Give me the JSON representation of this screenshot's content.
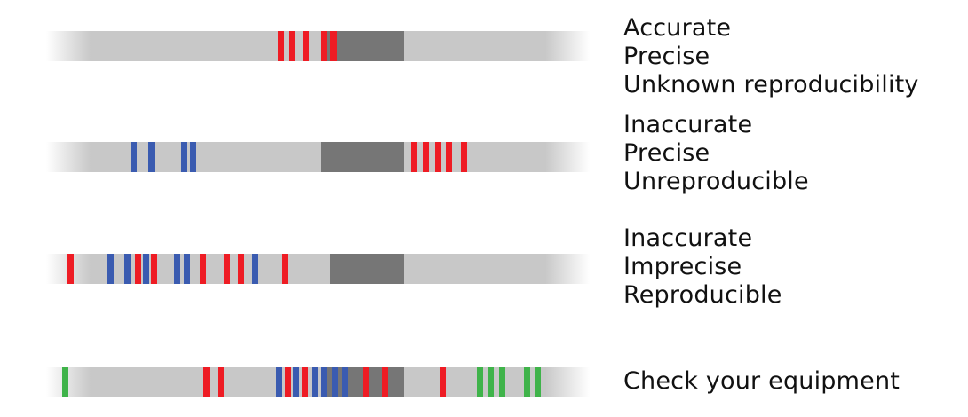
{
  "colors": {
    "strip": "#c8c8c8",
    "target_zone": "#767676",
    "red": "#ee1c24",
    "blue": "#3a5bb0",
    "green": "#3fb34a"
  },
  "rows": [
    {
      "labels": [
        "Accurate",
        "Precise",
        "Unknown reproducibility"
      ],
      "marks": [
        {
          "pos": 313,
          "color": "red"
        },
        {
          "pos": 325,
          "color": "red"
        },
        {
          "pos": 341,
          "color": "red"
        },
        {
          "pos": 361,
          "color": "red"
        },
        {
          "pos": 372,
          "color": "red"
        }
      ]
    },
    {
      "labels": [
        "Inaccurate",
        "Precise",
        "Unreproducible"
      ],
      "marks": [
        {
          "pos": 147,
          "color": "blue"
        },
        {
          "pos": 167,
          "color": "blue"
        },
        {
          "pos": 204,
          "color": "blue"
        },
        {
          "pos": 214,
          "color": "blue"
        },
        {
          "pos": 463,
          "color": "red"
        },
        {
          "pos": 476,
          "color": "red"
        },
        {
          "pos": 490,
          "color": "red"
        },
        {
          "pos": 502,
          "color": "red"
        },
        {
          "pos": 519,
          "color": "red"
        }
      ]
    },
    {
      "labels": [
        "Inaccurate",
        "Imprecise",
        "Reproducible"
      ],
      "marks": [
        {
          "pos": 76,
          "color": "red"
        },
        {
          "pos": 121,
          "color": "blue"
        },
        {
          "pos": 140,
          "color": "blue"
        },
        {
          "pos": 152,
          "color": "red"
        },
        {
          "pos": 161,
          "color": "blue"
        },
        {
          "pos": 170,
          "color": "red"
        },
        {
          "pos": 196,
          "color": "blue"
        },
        {
          "pos": 207,
          "color": "blue"
        },
        {
          "pos": 225,
          "color": "red"
        },
        {
          "pos": 252,
          "color": "red"
        },
        {
          "pos": 268,
          "color": "red"
        },
        {
          "pos": 284,
          "color": "blue"
        },
        {
          "pos": 317,
          "color": "red"
        }
      ]
    },
    {
      "labels": [
        "Check your equipment"
      ],
      "marks": [
        {
          "pos": 70,
          "color": "green"
        },
        {
          "pos": 229,
          "color": "red"
        },
        {
          "pos": 245,
          "color": "red"
        },
        {
          "pos": 311,
          "color": "blue"
        },
        {
          "pos": 321,
          "color": "red"
        },
        {
          "pos": 330,
          "color": "blue"
        },
        {
          "pos": 340,
          "color": "red"
        },
        {
          "pos": 351,
          "color": "blue"
        },
        {
          "pos": 361,
          "color": "blue"
        },
        {
          "pos": 374,
          "color": "blue"
        },
        {
          "pos": 385,
          "color": "blue"
        },
        {
          "pos": 409,
          "color": "red"
        },
        {
          "pos": 430,
          "color": "red"
        },
        {
          "pos": 495,
          "color": "red"
        },
        {
          "pos": 537,
          "color": "green"
        },
        {
          "pos": 549,
          "color": "green"
        },
        {
          "pos": 562,
          "color": "green"
        },
        {
          "pos": 590,
          "color": "green"
        },
        {
          "pos": 602,
          "color": "green"
        }
      ]
    }
  ]
}
